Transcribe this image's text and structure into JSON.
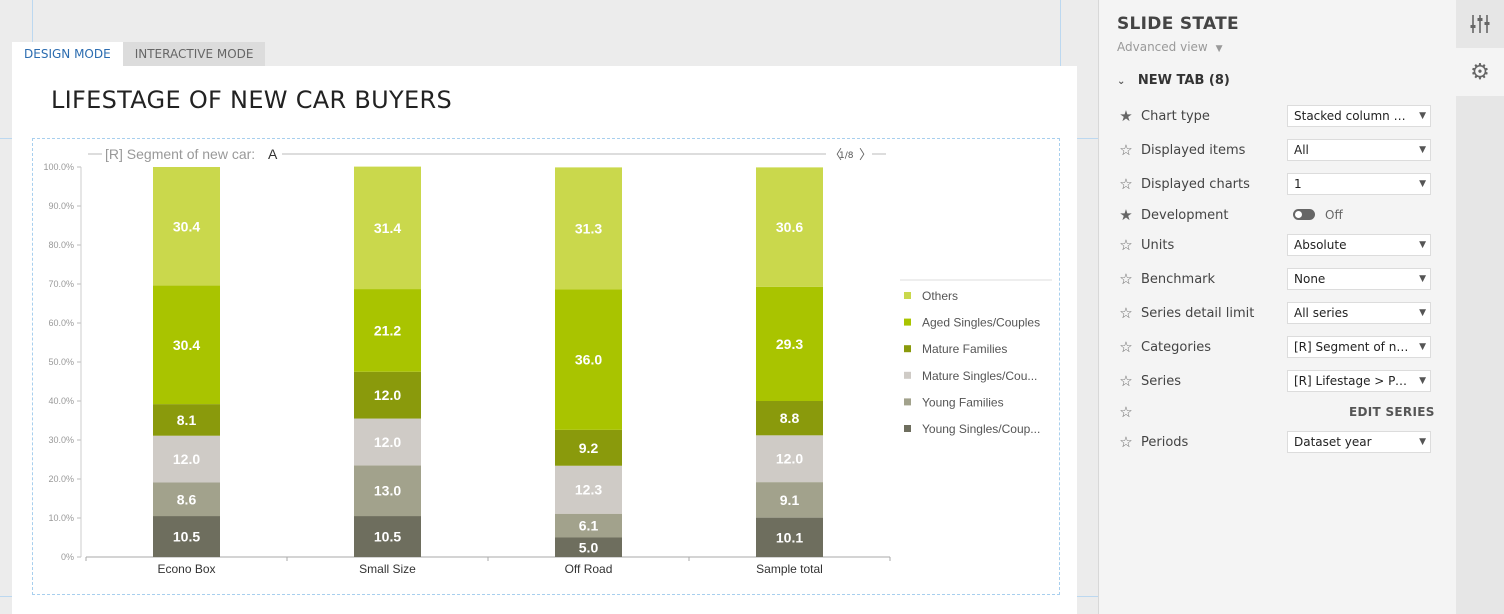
{
  "tabs": [
    {
      "label": "DESIGN MODE",
      "active": true
    },
    {
      "label": "INTERACTIVE MODE",
      "active": false
    }
  ],
  "slide": {
    "title": "LIFESTAGE OF NEW CAR BUYERS"
  },
  "chart_header": {
    "label": "[R] Segment of new car:",
    "value": "A",
    "pager": "1/8"
  },
  "chart_data": {
    "type": "bar",
    "stacked": true,
    "percent_axis": true,
    "categories": [
      "Econo Box",
      "Small Size",
      "Off Road",
      "Sample total"
    ],
    "y_ticks": [
      "100.0%",
      "90.0%",
      "80.0%",
      "70.0%",
      "60.0%",
      "50.0%",
      "40.0%",
      "30.0%",
      "20.0%",
      "10.0%",
      "0%"
    ],
    "ylim": [
      0,
      100
    ],
    "legend_position": "right",
    "series": [
      {
        "name": "Young Singles/Coup...",
        "color": "#6e6e5e",
        "values": [
          10.5,
          10.5,
          5.0,
          10.1
        ]
      },
      {
        "name": "Young Families",
        "color": "#a2a28c",
        "values": [
          8.6,
          13.0,
          6.1,
          9.1
        ]
      },
      {
        "name": "Mature Singles/Cou...",
        "color": "#cfcbc6",
        "values": [
          12.0,
          12.0,
          12.3,
          12.0
        ]
      },
      {
        "name": "Mature Families",
        "color": "#8a9a0c",
        "values": [
          8.1,
          12.0,
          9.2,
          8.8
        ]
      },
      {
        "name": "Aged Singles/Couples",
        "color": "#a9c400",
        "values": [
          30.4,
          21.2,
          36.0,
          29.3
        ]
      },
      {
        "name": "Others",
        "color": "#cad84c",
        "values": [
          30.4,
          31.4,
          31.3,
          30.6
        ]
      }
    ],
    "legend_order": [
      "Others",
      "Aged Singles/Couples",
      "Mature Families",
      "Mature Singles/Cou...",
      "Young Families",
      "Young Singles/Coup..."
    ]
  },
  "panel": {
    "title": "SLIDE STATE",
    "subtitle": "Advanced view",
    "tab_label": "NEW TAB (8)",
    "rows": [
      {
        "label": "Chart type",
        "star": "filled",
        "kind": "select",
        "value": "Stacked column ch..."
      },
      {
        "label": "Displayed items",
        "star": "empty",
        "kind": "select",
        "value": "All"
      },
      {
        "label": "Displayed charts",
        "star": "empty",
        "kind": "select",
        "value": "1"
      },
      {
        "label": "Development",
        "star": "filled",
        "kind": "toggle",
        "value": "Off"
      },
      {
        "label": "Units",
        "star": "empty",
        "kind": "select",
        "value": "Absolute"
      },
      {
        "label": "Benchmark",
        "star": "empty",
        "kind": "select",
        "value": "None"
      },
      {
        "label": "Series detail limit",
        "star": "empty",
        "kind": "select",
        "value": "All series"
      },
      {
        "label": "Categories",
        "star": "empty",
        "kind": "select",
        "value": "[R] Segment of new..."
      },
      {
        "label": "Series",
        "star": "empty",
        "kind": "select",
        "value": "[R] Lifestage > Perc..."
      },
      {
        "label": "",
        "star": "empty",
        "kind": "action",
        "value": "EDIT SERIES"
      },
      {
        "label": "Periods",
        "star": "empty",
        "kind": "select",
        "value": "Dataset year"
      }
    ]
  },
  "rail": {
    "icons": [
      "sliders-icon",
      "gear-icon"
    ]
  }
}
